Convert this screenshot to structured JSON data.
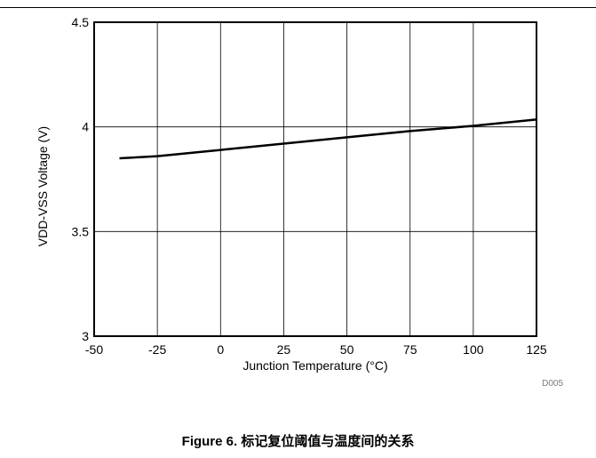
{
  "chart_data": {
    "type": "line",
    "title": "",
    "xlabel": "Junction Temperature (°C)",
    "ylabel": "VDD-VSS Voltage (V)",
    "xlim": [
      -50,
      125
    ],
    "ylim": [
      3,
      4.5
    ],
    "x_ticks": [
      -50,
      -25,
      0,
      25,
      50,
      75,
      100,
      125
    ],
    "x_tick_labels": [
      "-50",
      "-25",
      "0",
      "25",
      "50",
      "75",
      "100",
      "125"
    ],
    "y_ticks": [
      3,
      3.5,
      4,
      4.5
    ],
    "y_tick_labels": [
      "3",
      "3.5",
      "4",
      "4.5"
    ],
    "grid": true,
    "series": [
      {
        "x": [
          -40,
          -25,
          0,
          25,
          50,
          75,
          100,
          125
        ],
        "y": [
          3.85,
          3.86,
          3.89,
          3.92,
          3.95,
          3.98,
          4.005,
          4.035
        ]
      }
    ],
    "figure_id": "D005"
  },
  "caption": "Figure 6. 标记复位阈值与温度间的关系",
  "colors": {
    "line": "#000000",
    "grid": "#000000",
    "figure_id": "#7a7a7a"
  }
}
